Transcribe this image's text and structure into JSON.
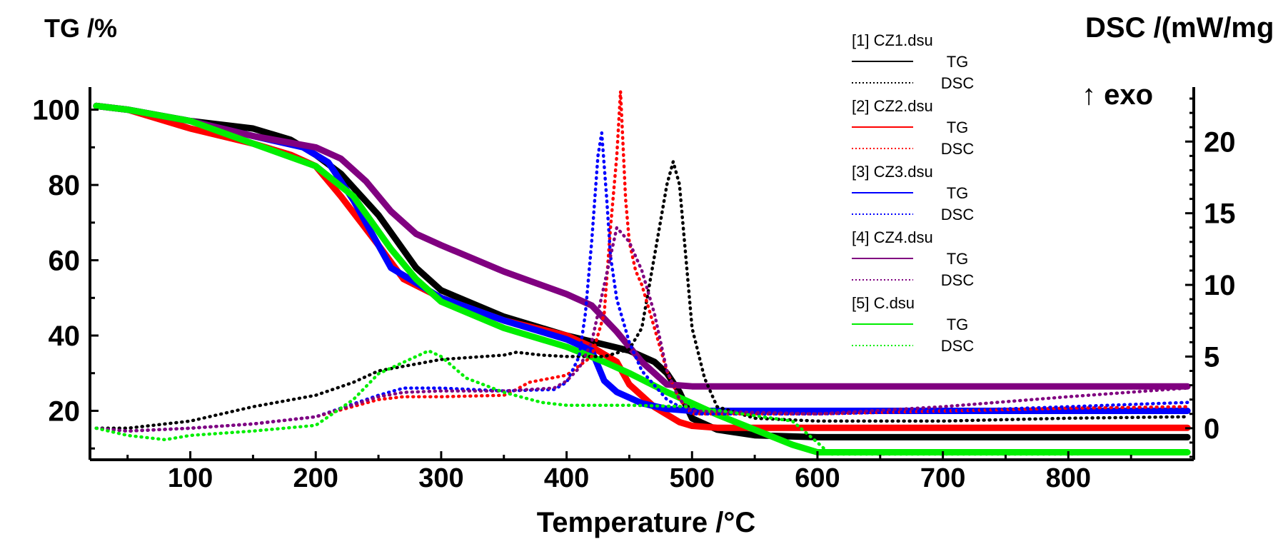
{
  "chart_data": {
    "type": "line",
    "xlabel": "Temperature /°C",
    "ylabel_left": "TG /%",
    "ylabel_right": "DSC /(mW/mg",
    "exo_label": "↑ exo",
    "xlim": [
      20,
      900
    ],
    "ylim_left": [
      7,
      106
    ],
    "ylim_right": [
      -2.2,
      23.8
    ],
    "x_ticks": [
      "100",
      "200",
      "300",
      "400",
      "500",
      "600",
      "700",
      "800"
    ],
    "y_left_ticks": [
      "20",
      "40",
      "60",
      "80",
      "100"
    ],
    "y_right_ticks": [
      "0",
      "5",
      "10",
      "15",
      "20"
    ],
    "grid": false,
    "legend_position": "top-center",
    "legend": [
      {
        "file": "[1] CZ1.dsu",
        "tg": "TG",
        "dsc": "DSC",
        "color": "#000000"
      },
      {
        "file": "[2] CZ2.dsu",
        "tg": "TG",
        "dsc": "DSC",
        "color": "#ff0000"
      },
      {
        "file": "[3] CZ3.dsu",
        "tg": "TG",
        "dsc": "DSC",
        "color": "#0000ff"
      },
      {
        "file": "[4] CZ4.dsu",
        "tg": "TG",
        "dsc": "DSC",
        "color": "#800080"
      },
      {
        "file": "[5] C.dsu",
        "tg": "TG",
        "dsc": "DSC",
        "color": "#00ee00"
      }
    ],
    "series": [
      {
        "name": "CZ1 TG",
        "kind": "TG",
        "color": "#000000",
        "x": [
          25,
          50,
          100,
          150,
          180,
          200,
          220,
          250,
          280,
          300,
          350,
          400,
          450,
          470,
          480,
          490,
          500,
          520,
          550,
          600,
          700,
          800,
          895
        ],
        "y": [
          101,
          100,
          97,
          95,
          92,
          88,
          83,
          72,
          58,
          52,
          45,
          40,
          36,
          33,
          30,
          25,
          18,
          15,
          13.5,
          13,
          13,
          13,
          13
        ]
      },
      {
        "name": "CZ2 TG",
        "kind": "TG",
        "color": "#ff0000",
        "x": [
          25,
          50,
          100,
          150,
          180,
          200,
          220,
          250,
          270,
          300,
          350,
          400,
          420,
          440,
          450,
          470,
          490,
          500,
          520,
          600,
          700,
          800,
          895
        ],
        "y": [
          101,
          100,
          95,
          91,
          88,
          85,
          77,
          64,
          55,
          50,
          44,
          40,
          37,
          33,
          27,
          21,
          17,
          16,
          15.5,
          15.5,
          15.5,
          15.5,
          15.5
        ]
      },
      {
        "name": "CZ3 TG",
        "kind": "TG",
        "color": "#0000ff",
        "x": [
          25,
          50,
          100,
          150,
          190,
          210,
          230,
          260,
          300,
          350,
          400,
          420,
          430,
          440,
          460,
          480,
          500,
          550,
          600,
          700,
          800,
          895
        ],
        "y": [
          101,
          100,
          97,
          93,
          90,
          86,
          76,
          58,
          50,
          44,
          39,
          36,
          28,
          25,
          22,
          20.5,
          20,
          20,
          20,
          20,
          20,
          20
        ]
      },
      {
        "name": "CZ4 TG",
        "kind": "TG",
        "color": "#800080",
        "x": [
          25,
          50,
          100,
          150,
          200,
          220,
          240,
          260,
          280,
          300,
          350,
          400,
          420,
          440,
          460,
          480,
          500,
          600,
          700,
          800,
          895
        ],
        "y": [
          101,
          100,
          97,
          93,
          90,
          87,
          81,
          73,
          67,
          64,
          57,
          51,
          48,
          41,
          33,
          27,
          26.5,
          26.5,
          26.5,
          26.5,
          26.5
        ]
      },
      {
        "name": "C TG",
        "kind": "TG",
        "color": "#00ee00",
        "x": [
          25,
          50,
          100,
          150,
          200,
          230,
          260,
          280,
          300,
          350,
          400,
          430,
          450,
          480,
          500,
          520,
          550,
          580,
          600,
          700,
          800,
          895
        ],
        "y": [
          101,
          100,
          97,
          91,
          85,
          77,
          63,
          55,
          49,
          42,
          37,
          33,
          30,
          25,
          22,
          19,
          15,
          11,
          9,
          9,
          9,
          9
        ]
      },
      {
        "name": "CZ1 DSC",
        "kind": "DSC",
        "color": "#000000",
        "x": [
          25,
          50,
          100,
          150,
          200,
          230,
          250,
          300,
          350,
          360,
          380,
          400,
          430,
          450,
          460,
          470,
          480,
          485,
          490,
          495,
          500,
          510,
          520,
          550,
          600,
          700,
          800,
          895
        ],
        "y": [
          0,
          0,
          0.5,
          1.5,
          2.3,
          3.2,
          4,
          4.8,
          5.1,
          5.3,
          5.1,
          5,
          5,
          5.5,
          7,
          12,
          17,
          18.6,
          17,
          12,
          7,
          3.5,
          1.5,
          0.7,
          0.5,
          0.5,
          0.7,
          0.8
        ]
      },
      {
        "name": "CZ2 DSC",
        "kind": "DSC",
        "color": "#ff0000",
        "x": [
          25,
          50,
          100,
          150,
          200,
          250,
          270,
          300,
          350,
          360,
          370,
          400,
          420,
          430,
          435,
          440,
          443,
          447,
          450,
          455,
          460,
          470,
          480,
          490,
          500,
          600,
          700,
          800,
          895
        ],
        "y": [
          0,
          -0.2,
          0,
          0.3,
          0.8,
          2,
          2.2,
          2.2,
          2.3,
          2.7,
          3.2,
          3.7,
          5,
          8,
          14,
          19,
          23.5,
          16,
          13,
          11,
          10,
          7,
          4,
          2,
          1,
          1,
          1.2,
          1.4,
          1.5
        ]
      },
      {
        "name": "CZ3 DSC",
        "kind": "DSC",
        "color": "#0000ff",
        "x": [
          25,
          50,
          100,
          150,
          200,
          250,
          270,
          300,
          350,
          390,
          400,
          410,
          415,
          420,
          425,
          428,
          432,
          435,
          440,
          450,
          460,
          480,
          500,
          600,
          700,
          800,
          895
        ],
        "y": [
          0,
          -0.2,
          0,
          0.3,
          0.8,
          2.3,
          2.8,
          2.8,
          2.6,
          2.7,
          3.2,
          5,
          8,
          13,
          19,
          20.6,
          16,
          12,
          9,
          6,
          4,
          2,
          1,
          1,
          1.2,
          1.5,
          1.8
        ]
      },
      {
        "name": "CZ4 DSC",
        "kind": "DSC",
        "color": "#800080",
        "x": [
          25,
          50,
          100,
          150,
          200,
          250,
          270,
          300,
          350,
          390,
          400,
          410,
          420,
          430,
          440,
          445,
          450,
          460,
          470,
          480,
          490,
          500,
          600,
          700,
          800,
          895
        ],
        "y": [
          0,
          -0.2,
          0,
          0.3,
          0.8,
          2.2,
          2.5,
          2.6,
          2.6,
          2.8,
          3.3,
          4.2,
          6,
          10,
          14,
          13.5,
          13,
          11,
          8,
          4,
          2,
          1.2,
          1,
          1.5,
          2.2,
          2.8
        ]
      },
      {
        "name": "C DSC",
        "kind": "DSC",
        "color": "#00ee00",
        "x": [
          25,
          50,
          80,
          100,
          150,
          200,
          230,
          250,
          280,
          290,
          300,
          320,
          350,
          380,
          400,
          450,
          500,
          580,
          600,
          610,
          700,
          800,
          895
        ],
        "y": [
          0,
          -0.5,
          -0.8,
          -0.5,
          -0.2,
          0.2,
          2,
          3.8,
          5,
          5.4,
          5,
          3.5,
          2.5,
          1.8,
          1.6,
          1.6,
          1.5,
          0.5,
          -1,
          -1.8,
          -1.8,
          -1.8,
          -1.7
        ]
      }
    ]
  }
}
